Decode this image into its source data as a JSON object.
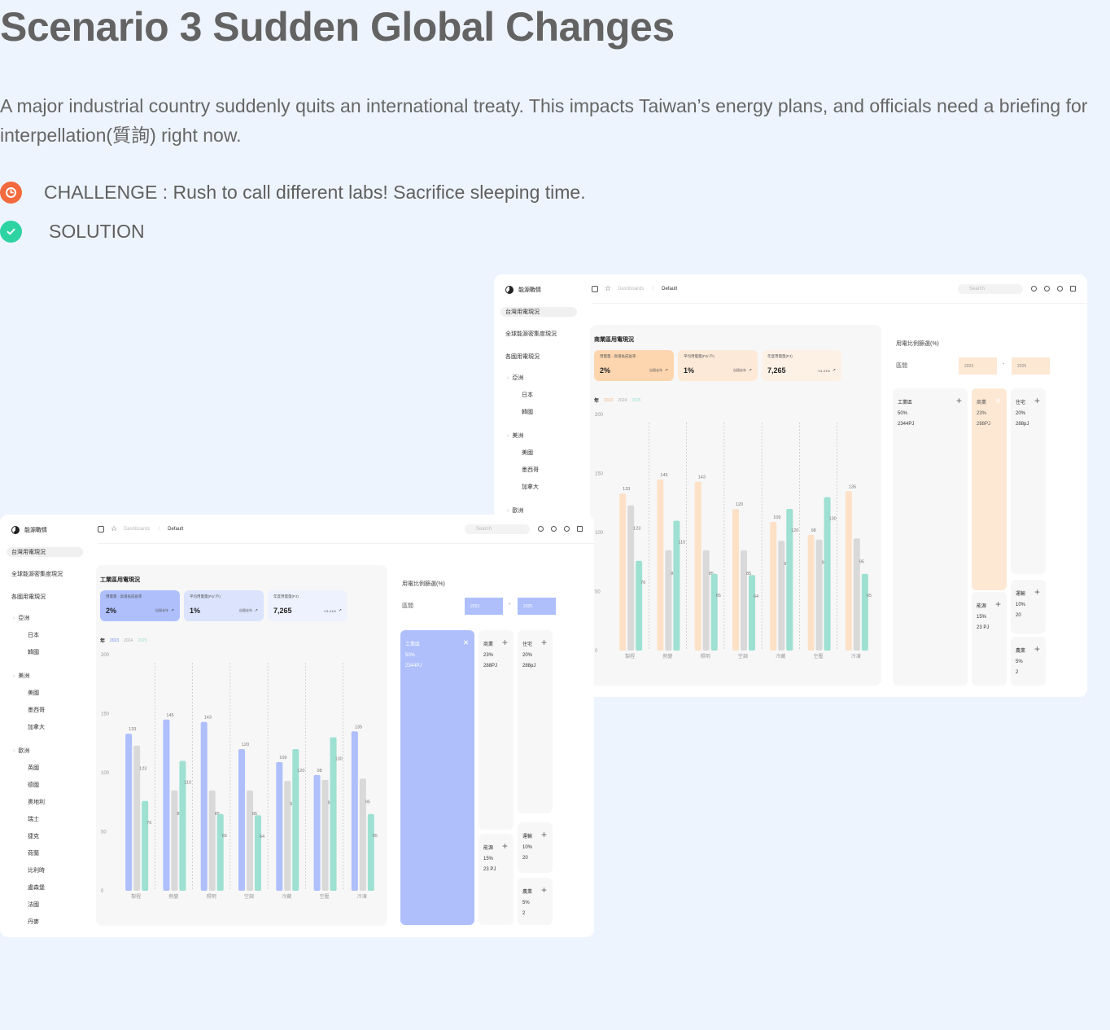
{
  "hero": {
    "title": "Scenario 3 Sudden Global Changes",
    "description": "A major industrial country suddenly quits an international treaty. This impacts Taiwan’s energy plans, and officials need a briefing for interpellation(質詢)  right now.",
    "challenge": "CHALLENGE : Rush to call different labs! Sacrifice sleeping time.",
    "solution": "SOLUTION",
    "challenge_icon": "clock-icon",
    "solution_icon": "check-icon",
    "colors": {
      "challenge": "#f26a3d",
      "solution": "#2ed3a2"
    }
  },
  "back_panel": {
    "brand": "能源戰情",
    "nav": {
      "active": "台灣用電現況",
      "items": [
        "全球能源密集度現況",
        "各國用電現況"
      ],
      "groups": [
        {
          "label": "亞洲",
          "subs": [
            "日本",
            "韓國"
          ]
        },
        {
          "label": "美洲",
          "subs": [
            "美國",
            "墨西哥",
            "加拿大"
          ]
        },
        {
          "label": "歐洲",
          "subs": []
        }
      ]
    },
    "topbar": {
      "crumb1": "Dashboards",
      "sep": "/",
      "crumb2": "Default",
      "search": "Search"
    },
    "card_title": "商業區用電現況",
    "stats": [
      {
        "label": "用電量 - 高增長成長率",
        "value": "2%",
        "sub": "自過去年"
      },
      {
        "label": "平均用電量(PJ/ 戶)",
        "value": "1%",
        "sub": "自過去年"
      },
      {
        "label": "年度用電量(PJ)",
        "value": "7,265",
        "sub": "+11.01%"
      }
    ],
    "legend_title": "年",
    "filter_title": "用電比例篩選(%)",
    "range_label": "區間",
    "range_from": "2023",
    "range_to": "2025",
    "range_dash": "-",
    "tiles": [
      {
        "name": "工業區",
        "pct": "50%",
        "amt": "2344PJ"
      },
      {
        "name": "商業",
        "pct": "23%",
        "amt": "288PJ"
      },
      {
        "name": "住宅",
        "pct": "20%",
        "amt": "288pJ"
      },
      {
        "name": "運輸",
        "pct": "10%",
        "amt": "20"
      },
      {
        "name": "能源",
        "pct": "15%",
        "amt": "23 PJ"
      },
      {
        "name": "農業",
        "pct": "5%",
        "amt": "2"
      }
    ],
    "accent": "#fde8d4",
    "series_colors": [
      "#fde1c7",
      "#d9d9d9",
      "#9ee0d2"
    ]
  },
  "front_panel": {
    "brand": "能源戰情",
    "nav": {
      "active": "台灣用電現況",
      "items": [
        "全球能源密集度現況",
        "各國用電現況"
      ],
      "groups": [
        {
          "label": "亞洲",
          "subs": [
            "日本",
            "韓國"
          ]
        },
        {
          "label": "美洲",
          "subs": [
            "美國",
            "墨西哥",
            "加拿大"
          ]
        },
        {
          "label": "歐洲",
          "subs": [
            "英國",
            "德國",
            "奧地利",
            "瑞士",
            "捷克",
            "荷蘭",
            "比利時",
            "盧森堡",
            "法國",
            "丹麥"
          ]
        }
      ]
    },
    "topbar": {
      "crumb1": "Dashboards",
      "sep": "/",
      "crumb2": "Default",
      "search": "Search"
    },
    "card_title": "工業區用電現況",
    "stats": [
      {
        "label": "用電量 - 高增長成長率",
        "value": "2%",
        "sub": "自過去年"
      },
      {
        "label": "平均用電量(PJ/ 戶)",
        "value": "1%",
        "sub": "自過去年"
      },
      {
        "label": "年度用電量(PJ)",
        "value": "7,265",
        "sub": "+11.01%"
      }
    ],
    "legend_title": "年",
    "filter_title": "用電比例篩選(%)",
    "range_label": "區間",
    "range_from": "2023",
    "range_to": "2025",
    "range_dash": "-",
    "tiles": [
      {
        "name": "工業區",
        "pct": "50%",
        "amt": "2344PJ"
      },
      {
        "name": "商業",
        "pct": "23%",
        "amt": "288PJ"
      },
      {
        "name": "住宅",
        "pct": "20%",
        "amt": "288pJ"
      },
      {
        "name": "運輸",
        "pct": "10%",
        "amt": "20"
      },
      {
        "name": "能源",
        "pct": "15%",
        "amt": "23 PJ"
      },
      {
        "name": "農業",
        "pct": "5%",
        "amt": "2"
      }
    ],
    "accent": "#aebffc",
    "series_colors": [
      "#aebffc",
      "#d9d9d9",
      "#9ee0d2"
    ]
  },
  "chart_data": [
    {
      "type": "bar",
      "title": "商業區用電現況",
      "categories": [
        "製程",
        "熱變",
        "照明",
        "空調",
        "冷藏",
        "空壓",
        "冷凍"
      ],
      "series": [
        {
          "name": "2023",
          "values": [
            133,
            145,
            143,
            120,
            109,
            98,
            135
          ]
        },
        {
          "name": "2024",
          "values": [
            123,
            85,
            85,
            85,
            93,
            94,
            95
          ]
        },
        {
          "name": "2025",
          "values": [
            76,
            110,
            65,
            64,
            120,
            130,
            65
          ]
        }
      ],
      "yticks": [
        0,
        50,
        100,
        150,
        200
      ],
      "ylim": [
        0,
        200
      ]
    },
    {
      "type": "bar",
      "title": "工業區用電現況",
      "categories": [
        "製程",
        "熱變",
        "照明",
        "空調",
        "冷藏",
        "空壓",
        "冷凍"
      ],
      "series": [
        {
          "name": "2023",
          "values": [
            133,
            145,
            143,
            120,
            109,
            98,
            135
          ]
        },
        {
          "name": "2024",
          "values": [
            123,
            85,
            85,
            85,
            93,
            94,
            95
          ]
        },
        {
          "name": "2025",
          "values": [
            76,
            110,
            65,
            64,
            120,
            130,
            65
          ]
        }
      ],
      "yticks": [
        0,
        50,
        100,
        150,
        200
      ],
      "ylim": [
        0,
        200
      ]
    }
  ]
}
